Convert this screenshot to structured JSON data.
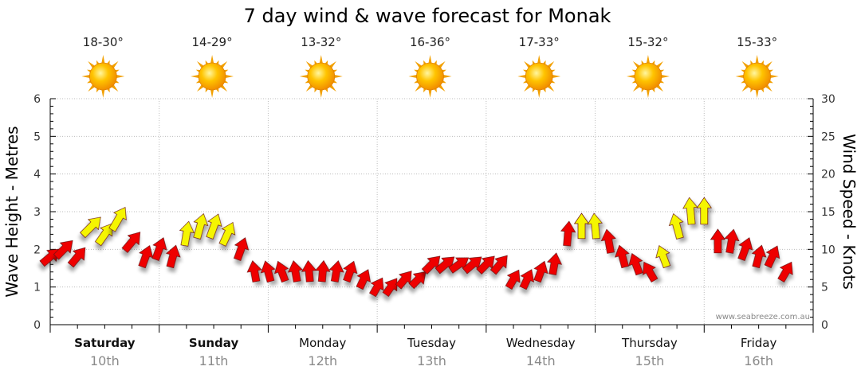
{
  "chart_data": {
    "type": "line",
    "title": "7 day wind & wave forecast for Monak",
    "ylabel_left": "Wave Height - Metres",
    "ylabel_right": "Wind Speed - Knots",
    "ylim_left": [
      0,
      6
    ],
    "ylim_right": [
      0,
      30
    ],
    "yticks_left": [
      "0",
      "1",
      "2",
      "3",
      "4",
      "5",
      "6"
    ],
    "yticks_right": [
      "0",
      "5",
      "10",
      "15",
      "20",
      "25",
      "30"
    ],
    "grid": true,
    "days": [
      {
        "day": "Saturday",
        "date": "10th",
        "temp": "18-30°",
        "bold": true
      },
      {
        "day": "Sunday",
        "date": "11th",
        "temp": "14-29°",
        "bold": true
      },
      {
        "day": "Monday",
        "date": "12th",
        "temp": "13-32°",
        "bold": false
      },
      {
        "day": "Tuesday",
        "date": "13th",
        "temp": "16-36°",
        "bold": false
      },
      {
        "day": "Wednesday",
        "date": "14th",
        "temp": "17-33°",
        "bold": false
      },
      {
        "day": "Thursday",
        "date": "15th",
        "temp": "15-32°",
        "bold": false
      },
      {
        "day": "Friday",
        "date": "16th",
        "temp": "15-33°",
        "bold": false
      }
    ],
    "series": [
      {
        "name": "Wind Speed",
        "unit": "knots",
        "x_hours": [
          0,
          3,
          6,
          9,
          12,
          15,
          18,
          21,
          24,
          27,
          30,
          33,
          36,
          39,
          42,
          45,
          48,
          51,
          54,
          57,
          60,
          63,
          66,
          69,
          72,
          75,
          78,
          81,
          84,
          87,
          90,
          93,
          96,
          99,
          102,
          105,
          108,
          111,
          114,
          117,
          120,
          123,
          126,
          129,
          132,
          135,
          138,
          141,
          144,
          147,
          150,
          153,
          156,
          159,
          162
        ],
        "values": [
          9,
          10,
          9,
          13,
          12,
          14,
          11,
          9,
          10,
          9,
          12,
          13,
          13,
          12,
          10,
          7,
          7,
          7,
          7,
          7,
          7,
          7,
          7,
          6,
          5,
          5,
          6,
          6,
          8,
          8,
          8,
          8,
          8,
          8,
          6,
          6,
          7,
          8,
          12,
          13,
          13,
          11,
          9,
          8,
          7,
          9,
          13,
          15,
          15,
          11,
          11,
          10,
          9,
          9,
          7
        ],
        "direction_deg": [
          50,
          45,
          40,
          45,
          35,
          30,
          40,
          20,
          20,
          15,
          10,
          15,
          20,
          25,
          20,
          350,
          345,
          340,
          350,
          355,
          5,
          10,
          20,
          25,
          30,
          35,
          40,
          45,
          45,
          50,
          55,
          50,
          45,
          40,
          30,
          25,
          20,
          10,
          5,
          0,
          355,
          350,
          345,
          340,
          330,
          340,
          345,
          355,
          0,
          0,
          10,
          20,
          15,
          25,
          30
        ],
        "colors": [
          "red",
          "red",
          "red",
          "yellow",
          "yellow",
          "yellow",
          "red",
          "red",
          "red",
          "red",
          "yellow",
          "yellow",
          "yellow",
          "yellow",
          "red",
          "red",
          "red",
          "red",
          "red",
          "red",
          "red",
          "red",
          "red",
          "red",
          "red",
          "red",
          "red",
          "red",
          "red",
          "red",
          "red",
          "red",
          "red",
          "red",
          "red",
          "red",
          "red",
          "red",
          "red",
          "yellow",
          "yellow",
          "red",
          "red",
          "red",
          "red",
          "yellow",
          "yellow",
          "yellow",
          "yellow",
          "red",
          "red",
          "red",
          "red",
          "red",
          "red"
        ]
      }
    ]
  },
  "legend_colors": {
    "calm": "#f5f500",
    "strong": "#ee0000"
  },
  "credit": "www.seabreeze.com.au"
}
